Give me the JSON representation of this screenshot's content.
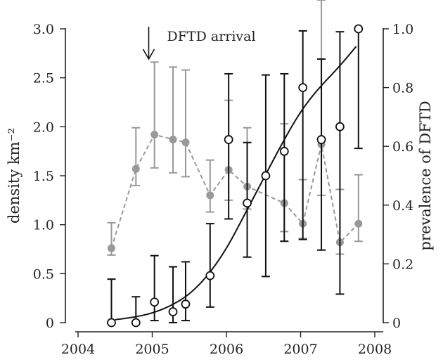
{
  "chart_data": {
    "type": "scatter",
    "title": "",
    "xlabel": "",
    "ylabel": "density km⁻²",
    "y2label": "prevalence of DFTD",
    "xlim": [
      2004,
      2008
    ],
    "ylim": [
      0,
      3.0
    ],
    "y2lim": [
      0,
      1.0
    ],
    "x_ticks": [
      "2004",
      "2005",
      "2006",
      "2007",
      "2008"
    ],
    "y_ticks": [
      "0",
      "0.5",
      "1.0",
      "1.5",
      "2.0",
      "2.5",
      "3.0"
    ],
    "y2_ticks": [
      "0",
      "0.2",
      "0.4",
      "0.6",
      "0.8",
      "1.0"
    ],
    "annotation": {
      "text": "DFTD arrival",
      "x": 2005.0
    },
    "grid": false,
    "colors": {
      "density": "#999999",
      "prevalence": "#111111"
    },
    "series": [
      {
        "axis": "left",
        "style": "grey filled circles, dashed line, grey error bars",
        "points": [
          {
            "x": 2004.45,
            "y": 0.76,
            "lo": 0.69,
            "hi": 1.02
          },
          {
            "x": 2004.78,
            "y": 1.57,
            "lo": 1.4,
            "hi": 1.99
          },
          {
            "x": 2005.03,
            "y": 1.92,
            "lo": 1.58,
            "hi": 2.66
          },
          {
            "x": 2005.28,
            "y": 1.87,
            "lo": 1.53,
            "hi": 2.61
          },
          {
            "x": 2005.45,
            "y": 1.84,
            "lo": 1.49,
            "hi": 2.58
          },
          {
            "x": 2005.78,
            "y": 1.3,
            "lo": 1.13,
            "hi": 1.66
          },
          {
            "x": 2006.03,
            "y": 1.56,
            "lo": 1.25,
            "hi": 2.27
          },
          {
            "x": 2006.28,
            "y": 1.39,
            "lo": 1.16,
            "hi": 1.99
          },
          {
            "x": 2006.78,
            "y": 1.22,
            "lo": 0.93,
            "hi": 2.03
          },
          {
            "x": 2007.03,
            "y": 1.01,
            "lo": 0.86,
            "hi": 1.46
          },
          {
            "x": 2007.28,
            "y": 1.82,
            "lo": 1.3,
            "hi": 3.3
          },
          {
            "x": 2007.53,
            "y": 0.82,
            "lo": 0.7,
            "hi": 1.36
          },
          {
            "x": 2007.78,
            "y": 1.01,
            "lo": 0.83,
            "hi": 1.51
          }
        ]
      },
      {
        "axis": "right",
        "style": "open circles, black error bars, logistic fit curve",
        "points": [
          {
            "x": 2004.45,
            "y": 0.0,
            "lo": 0.0,
            "hi": 0.148
          },
          {
            "x": 2004.78,
            "y": 0.0,
            "lo": 0.0,
            "hi": 0.088
          },
          {
            "x": 2005.03,
            "y": 0.07,
            "lo": 0.007,
            "hi": 0.228
          },
          {
            "x": 2005.28,
            "y": 0.037,
            "lo": 0.0,
            "hi": 0.19
          },
          {
            "x": 2005.45,
            "y": 0.063,
            "lo": 0.007,
            "hi": 0.207
          },
          {
            "x": 2005.78,
            "y": 0.16,
            "lo": 0.053,
            "hi": 0.337
          },
          {
            "x": 2006.03,
            "y": 0.623,
            "lo": 0.353,
            "hi": 0.847
          },
          {
            "x": 2006.28,
            "y": 0.407,
            "lo": 0.223,
            "hi": 0.613
          },
          {
            "x": 2006.53,
            "y": 0.5,
            "lo": 0.157,
            "hi": 0.843
          },
          {
            "x": 2006.78,
            "y": 0.583,
            "lo": 0.277,
            "hi": 0.847
          },
          {
            "x": 2007.03,
            "y": 0.8,
            "lo": 0.283,
            "hi": 0.993
          },
          {
            "x": 2007.28,
            "y": 0.623,
            "lo": 0.247,
            "hi": 0.897
          },
          {
            "x": 2007.53,
            "y": 0.667,
            "lo": 0.097,
            "hi": 0.99
          },
          {
            "x": 2007.78,
            "y": 1.0,
            "lo": 0.593,
            "hi": 1.0
          }
        ],
        "fit": [
          {
            "x": 2004.5,
            "y": 0.01
          },
          {
            "x": 2004.75,
            "y": 0.018
          },
          {
            "x": 2005.0,
            "y": 0.032
          },
          {
            "x": 2005.25,
            "y": 0.057
          },
          {
            "x": 2005.5,
            "y": 0.095
          },
          {
            "x": 2005.75,
            "y": 0.16
          },
          {
            "x": 2006.0,
            "y": 0.25
          },
          {
            "x": 2006.25,
            "y": 0.37
          },
          {
            "x": 2006.5,
            "y": 0.49
          },
          {
            "x": 2006.75,
            "y": 0.61
          },
          {
            "x": 2007.0,
            "y": 0.72
          },
          {
            "x": 2007.25,
            "y": 0.8
          },
          {
            "x": 2007.5,
            "y": 0.865
          },
          {
            "x": 2007.75,
            "y": 0.94
          }
        ]
      }
    ]
  }
}
